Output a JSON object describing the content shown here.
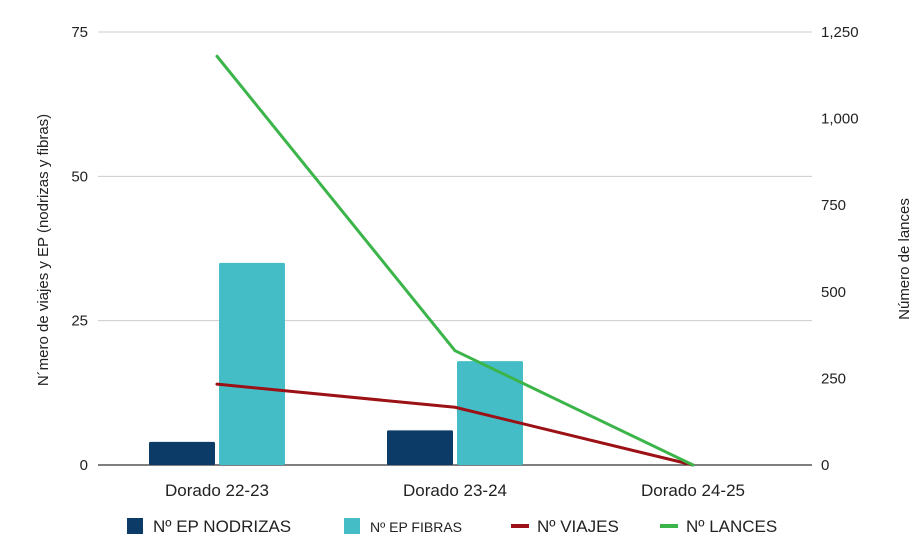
{
  "chart_data": {
    "type": "bar",
    "categories": [
      "Dorado 22-23",
      "Dorado 23-24",
      "Dorado 24-25"
    ],
    "ylabel": "N´mero de viajes y EP (nodrizas y fibras)",
    "y2label": "Número de lances",
    "ylim": [
      0,
      75
    ],
    "y2lim": [
      0,
      1250
    ],
    "yticks": [
      "0",
      "25",
      "50",
      "75"
    ],
    "y2ticks": [
      "0",
      "250",
      "500",
      "750",
      "1,000",
      "1,250"
    ],
    "grid": true,
    "legend_position": "bottom",
    "series": [
      {
        "name": "Nº EP NODRIZAS",
        "kind": "bar",
        "axis": "left",
        "color": "#0b3b66",
        "values": [
          4,
          6,
          0
        ]
      },
      {
        "name": "Nº EP FIBRAS",
        "kind": "bar",
        "axis": "left",
        "color": "#45bdc6",
        "values": [
          35,
          18,
          0
        ]
      },
      {
        "name": "Nº VIAJES",
        "kind": "line",
        "axis": "left",
        "color": "#9b1115",
        "values": [
          14,
          10,
          0
        ]
      },
      {
        "name": "Nº LANCES",
        "kind": "line",
        "axis": "right",
        "color": "#3bb54a",
        "values": [
          1180,
          330,
          0
        ]
      }
    ]
  }
}
